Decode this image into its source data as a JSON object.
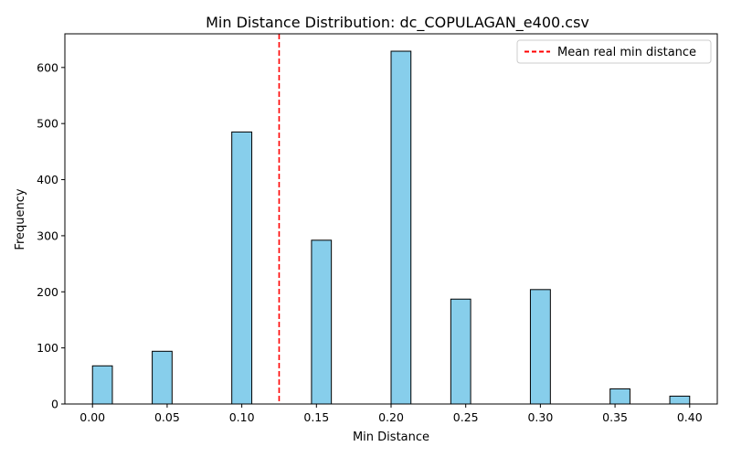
{
  "chart_data": {
    "type": "bar",
    "title": "Min Distance Distribution: dc_COPULAGAN_e400.csv",
    "xlabel": "Min Distance",
    "ylabel": "Frequency",
    "xlim": [
      -0.0185,
      0.4185
    ],
    "ylim": [
      0,
      660
    ],
    "xticks": [
      "0.00",
      "0.05",
      "0.10",
      "0.15",
      "0.20",
      "0.25",
      "0.30",
      "0.35",
      "0.40"
    ],
    "xtick_values": [
      0.0,
      0.05,
      0.1,
      0.15,
      0.2,
      0.25,
      0.3,
      0.35,
      0.4
    ],
    "yticks": [
      "0",
      "100",
      "200",
      "300",
      "400",
      "500",
      "600"
    ],
    "ytick_values": [
      0,
      100,
      200,
      300,
      400,
      500,
      600
    ],
    "bin_width": 0.01333,
    "bins": [
      {
        "x_start": 0.0,
        "x_end": 0.0133,
        "value": 68
      },
      {
        "x_start": 0.04,
        "x_end": 0.0533,
        "value": 94
      },
      {
        "x_start": 0.0933,
        "x_end": 0.1067,
        "value": 485
      },
      {
        "x_start": 0.1467,
        "x_end": 0.16,
        "value": 292
      },
      {
        "x_start": 0.2,
        "x_end": 0.2133,
        "value": 629
      },
      {
        "x_start": 0.24,
        "x_end": 0.2533,
        "value": 187
      },
      {
        "x_start": 0.2933,
        "x_end": 0.3067,
        "value": 204
      },
      {
        "x_start": 0.3467,
        "x_end": 0.36,
        "value": 27
      },
      {
        "x_start": 0.3867,
        "x_end": 0.4,
        "value": 14
      }
    ],
    "bar_color": "#87ceeb",
    "bar_edge_color": "#000000",
    "mean_line": {
      "x": 0.125,
      "label": "Mean real min distance",
      "color": "#ff0000",
      "style": "dashed"
    },
    "legend_position": "upper right",
    "grid": false
  }
}
